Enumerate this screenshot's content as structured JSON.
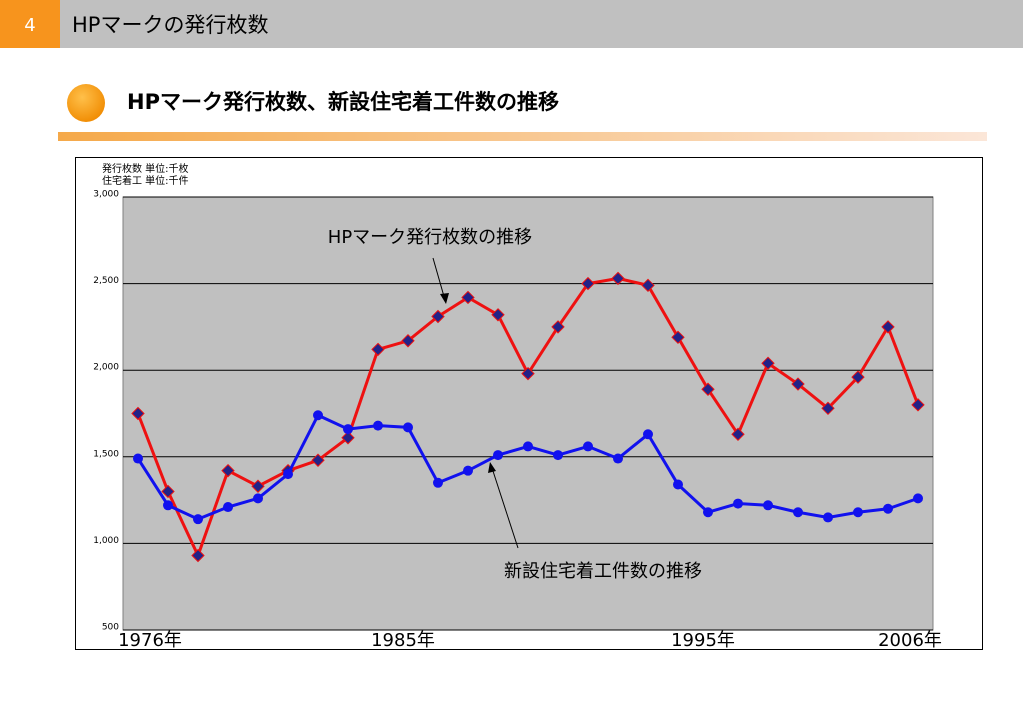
{
  "header": {
    "number": "4",
    "title": "HPマークの発行枚数"
  },
  "chart_data": {
    "type": "line",
    "title": "HPマーク発行枚数、新設住宅着工件数の推移",
    "units": [
      "発行枚数 単位:千枚",
      "住宅着工 単位:千件"
    ],
    "categories": [
      "1976年",
      null,
      null,
      null,
      null,
      null,
      null,
      null,
      null,
      "1985年",
      null,
      null,
      null,
      null,
      null,
      null,
      null,
      null,
      null,
      "1995年",
      null,
      null,
      null,
      null,
      null,
      null,
      "2006年"
    ],
    "series": [
      {
        "color": "#ee1111",
        "marker": "diamond",
        "values": [
          1750,
          1300,
          930,
          1420,
          1330,
          1420,
          1480,
          1610,
          2120,
          2170,
          2310,
          2420,
          2320,
          1980,
          2250,
          2500,
          2530,
          2490,
          2190,
          1890,
          1630,
          2040,
          1920,
          1780,
          1960,
          2250,
          1800
        ]
      },
      {
        "color": "#1111ee",
        "marker": "circle",
        "values": [
          1490,
          1220,
          1140,
          1210,
          1260,
          1400,
          1740,
          1660,
          1680,
          1670,
          1350,
          1420,
          1510,
          1560,
          1510,
          1560,
          1490,
          1630,
          1340,
          1180,
          1230,
          1220,
          1180,
          1150,
          1180,
          1200,
          1260
        ]
      }
    ],
    "annotations": [
      "HPマーク発行枚数の推移",
      "新設住宅着工件数の推移"
    ],
    "ylim": [
      500,
      3000
    ],
    "yticks": [
      500,
      {
        "value": 1000,
        "label": "1,000"
      },
      {
        "value": 1500,
        "label": "1,500"
      },
      {
        "value": 2000,
        "label": "2,000"
      },
      {
        "value": 2500,
        "label": "2,500"
      },
      {
        "value": 3000,
        "label": "3,000"
      }
    ],
    "grid": true
  }
}
